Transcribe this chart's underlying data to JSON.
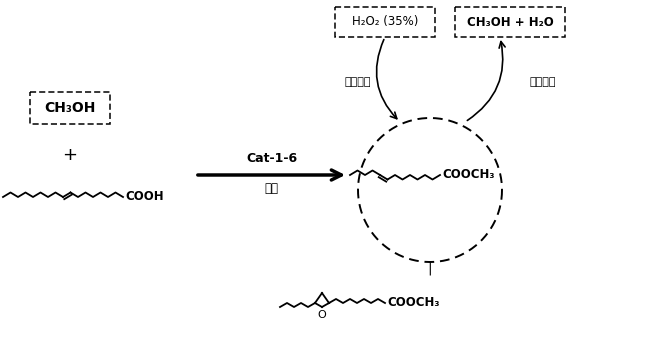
{
  "bg_color": "#ffffff",
  "box1_text": "CH₃OH",
  "box2_text": "H₂O₂ (35%)",
  "box3_text": "CH₃OH + H₂O",
  "arrow_label_top": "Cat-1-6",
  "arrow_label_bot": "室温",
  "label_continuous": "连续加入",
  "label_vacuum": "减压分层",
  "plus_sign": "+",
  "fatty_acid_label": "COOH",
  "methyl_ester_label": "COOCH₃",
  "methyl_ester2_label": "COOCH₃",
  "epoxide_o": "O",
  "product_arrow": "|",
  "figsize": [
    6.61,
    3.39
  ],
  "dpi": 100
}
